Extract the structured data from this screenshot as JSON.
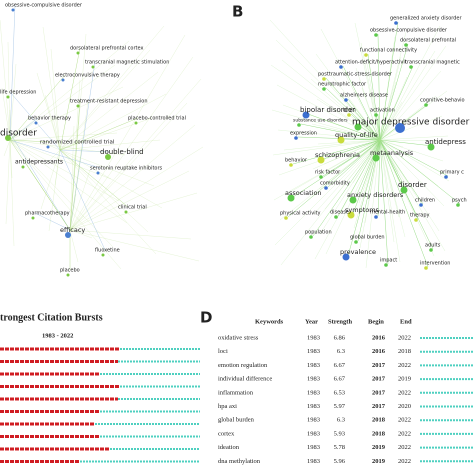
{
  "panel_a": {
    "labels": [
      "obsessive-compulsive disorder",
      "dorsolateral prefrontal cortex",
      "transcranial magnetic stimulation",
      "electroconvulsive therapy",
      "life depression",
      "treatment-resistant depression",
      "behavior therapy",
      "placebo-controlled trial",
      "disorder",
      "randomized controlled trial",
      "double-blind",
      "antidepressants",
      "serotonin reuptake inhibitors",
      "clinical trial",
      "pharmacotherapy",
      "efficacy",
      "fluoxetine",
      "placebo"
    ]
  },
  "panel_b": {
    "letter": "B",
    "labels": [
      "generalized anxiety disorder",
      "obsessive-compulsive disorder",
      "dorsolateral prefrontal",
      "functional connectivity",
      "attention-deficit/hyperactivit",
      "transcranial magnetic",
      "posttraumatic-stress-disorder",
      "neurotrophic factor",
      "alzheimers disease",
      "brain",
      "activation",
      "cognitive-behavio",
      "bipolar disorder",
      "substance use disorders",
      "major depressive disorder",
      "quality-of-life",
      "expression",
      "antidepress",
      "schizophrenia",
      "metaanalysis",
      "primary c",
      "behavior",
      "risk factor",
      "disorder",
      "comorbidity",
      "anxiety disorders",
      "association",
      "symptoms",
      "children",
      "psych",
      "physical activity",
      "disease",
      "mental-health",
      "therapy",
      "population",
      "global burden",
      "prevalence",
      "adults",
      "impact",
      "intervention"
    ]
  },
  "panel_c": {
    "title": "trongest Citation Bursts",
    "range": "1983 - 2022"
  },
  "panel_d": {
    "letter": "D",
    "header": [
      "Keywords",
      "Year",
      "Strength",
      "Begin",
      "End"
    ],
    "rows": [
      [
        "oxidative stress",
        "1983",
        "6.86",
        "2016",
        "2022"
      ],
      [
        "loci",
        "1983",
        "6.3",
        "2016",
        "2018"
      ],
      [
        "emotion regulation",
        "1983",
        "6.67",
        "2017",
        "2022"
      ],
      [
        "individual difference",
        "1983",
        "6.67",
        "2017",
        "2019"
      ],
      [
        "inflammation",
        "1983",
        "6.53",
        "2017",
        "2022"
      ],
      [
        "hpa axi",
        "1983",
        "5.97",
        "2017",
        "2020"
      ],
      [
        "global burden",
        "1983",
        "6.3",
        "2018",
        "2022"
      ],
      [
        "cortex",
        "1983",
        "5.93",
        "2018",
        "2022"
      ],
      [
        "ideation",
        "1983",
        "5.78",
        "2019",
        "2022"
      ],
      [
        "dna methylation",
        "1983",
        "5.96",
        "2019",
        "2022"
      ]
    ]
  }
}
